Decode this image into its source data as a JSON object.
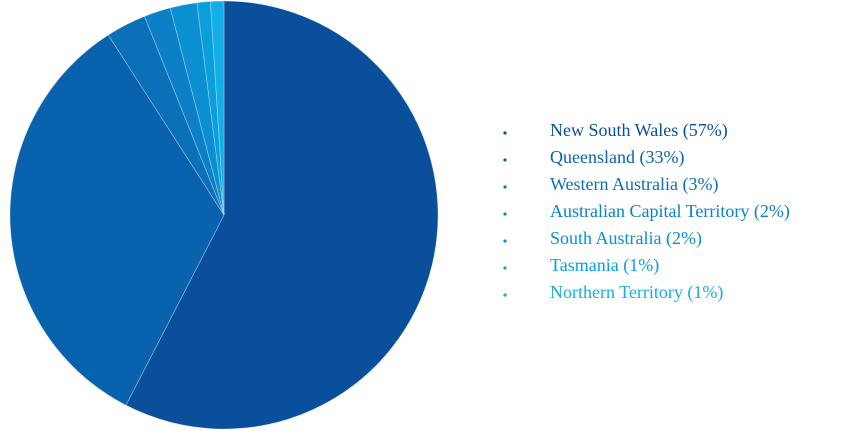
{
  "chart_data": {
    "type": "pie",
    "categories": [
      "New South Wales",
      "Queensland",
      "Western Australia",
      "Australian Capital Territory",
      "South Australia",
      "Tasmania",
      "Northern Territory"
    ],
    "values": [
      57,
      33,
      3,
      2,
      2,
      1,
      1
    ],
    "value_labels": [
      "(57%)",
      "(33%)",
      "(3%)",
      "(2%)",
      "(2%)",
      "(1%)",
      "(1%)"
    ],
    "colors": [
      "#0a4f9c",
      "#0862ad",
      "#0a70b8",
      "#0b80c6",
      "#0a8fd1",
      "#0a9edb",
      "#13aee6"
    ],
    "legend": "right"
  }
}
